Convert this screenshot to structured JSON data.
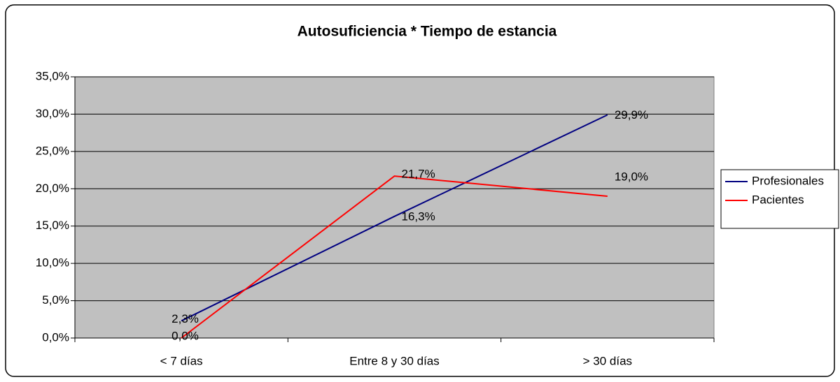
{
  "chart_data": {
    "type": "line",
    "title": "Autosuficiencia  * Tiempo de estancia",
    "categories": [
      "< 7 días",
      "Entre 8 y 30 días",
      "> 30 días"
    ],
    "series": [
      {
        "name": "Profesionales",
        "color": "#000080",
        "values": [
          2.3,
          16.3,
          29.9
        ],
        "value_labels": [
          "2,3%",
          "16,3%",
          "29,9%"
        ]
      },
      {
        "name": "Pacientes",
        "color": "#ff0000",
        "values": [
          0,
          21.7,
          19.0
        ],
        "value_labels": [
          "0,0%",
          "21,7%",
          "19,0%"
        ]
      }
    ],
    "ylim": [
      0,
      35
    ],
    "yticks": [
      {
        "value": 0,
        "label": "0,0%"
      },
      {
        "value": 5,
        "label": "5,0%"
      },
      {
        "value": 10,
        "label": "10,0%"
      },
      {
        "value": 15,
        "label": "15,0%"
      },
      {
        "value": 20,
        "label": "20,0%"
      },
      {
        "value": 25,
        "label": "25,0%"
      },
      {
        "value": 30,
        "label": "30,0%"
      },
      {
        "value": 35,
        "label": "35,0%"
      }
    ],
    "grid": true,
    "legend": "right",
    "plot_background": "#c0c0c0"
  }
}
